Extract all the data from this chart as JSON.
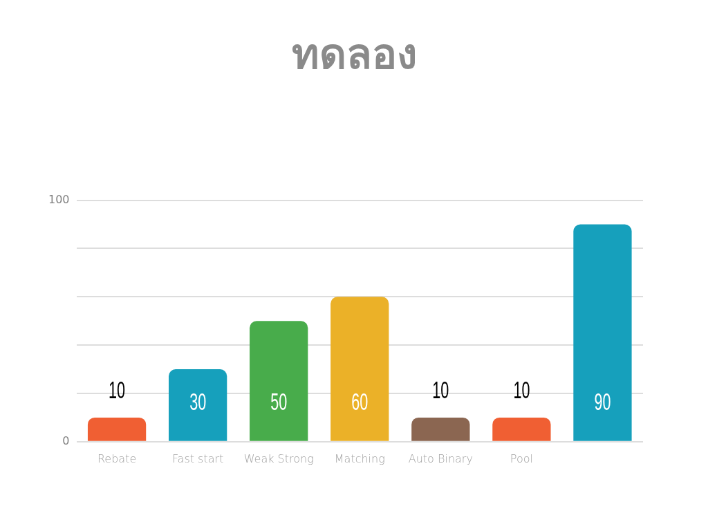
{
  "chart_data": {
    "type": "bar",
    "title": "ทดลอง",
    "categories": [
      "Rebate",
      "Fast start",
      "Weak Strong",
      "Matching",
      "Auto Binary",
      "Pool",
      null
    ],
    "values": [
      10,
      30,
      50,
      60,
      10,
      10,
      90
    ],
    "colors": [
      "#f05f33",
      "#16a0bc",
      "#48ac4b",
      "#ebb128",
      "#8b6651",
      "#f05f33",
      "#16a0bc"
    ],
    "ylim": [
      0,
      100
    ],
    "yticks": [
      0,
      {
        "value": 20,
        "label": null
      },
      {
        "value": 40,
        "label": null
      },
      {
        "value": 60,
        "label": null
      },
      {
        "value": 80,
        "label": null
      },
      100
    ],
    "grid": "y",
    "legend": false,
    "data_labels": true
  }
}
